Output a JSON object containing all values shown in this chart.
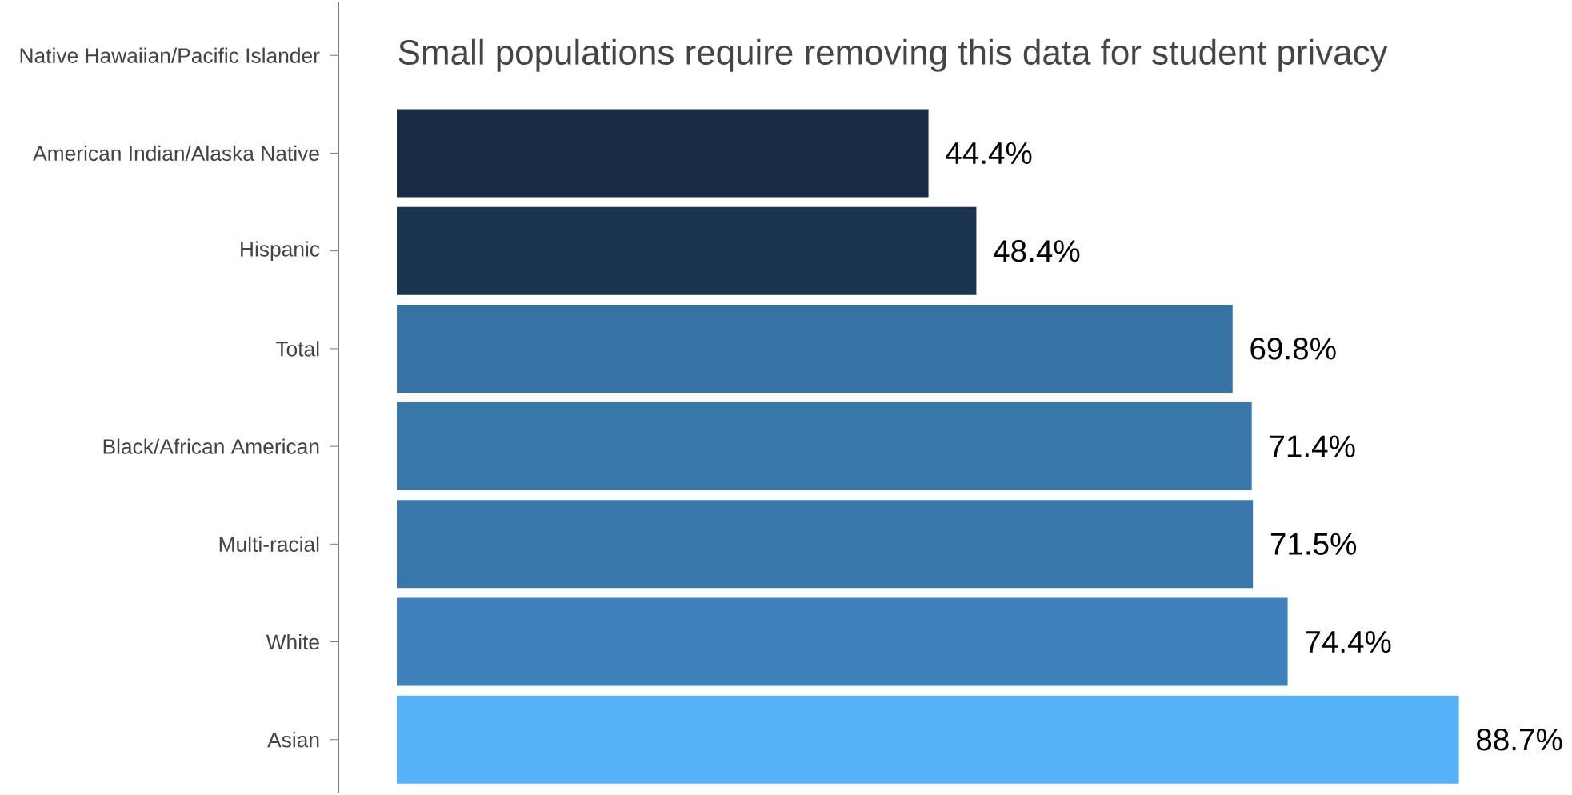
{
  "chart_data": {
    "type": "bar",
    "orientation": "horizontal",
    "categories": [
      "Native Hawaiian/Pacific Islander",
      "American Indian/Alaska Native",
      "Hispanic",
      "Total",
      "Black/African American",
      "Multi-racial",
      "White",
      "Asian"
    ],
    "values": [
      null,
      44.4,
      48.4,
      69.8,
      71.4,
      71.5,
      74.4,
      88.7
    ],
    "colors": [
      "#132b43",
      "#172c44",
      "#1a3450",
      "#3672a3",
      "#3977aa",
      "#3977aa",
      "#3f82bb",
      "#56b1f7"
    ],
    "value_labels": [
      null,
      "44.4%",
      "48.4%",
      "69.8%",
      "71.4%",
      "71.5%",
      "74.4%",
      "88.7%"
    ],
    "annotations": [
      "Small populations require removing this data for student privacy"
    ]
  }
}
